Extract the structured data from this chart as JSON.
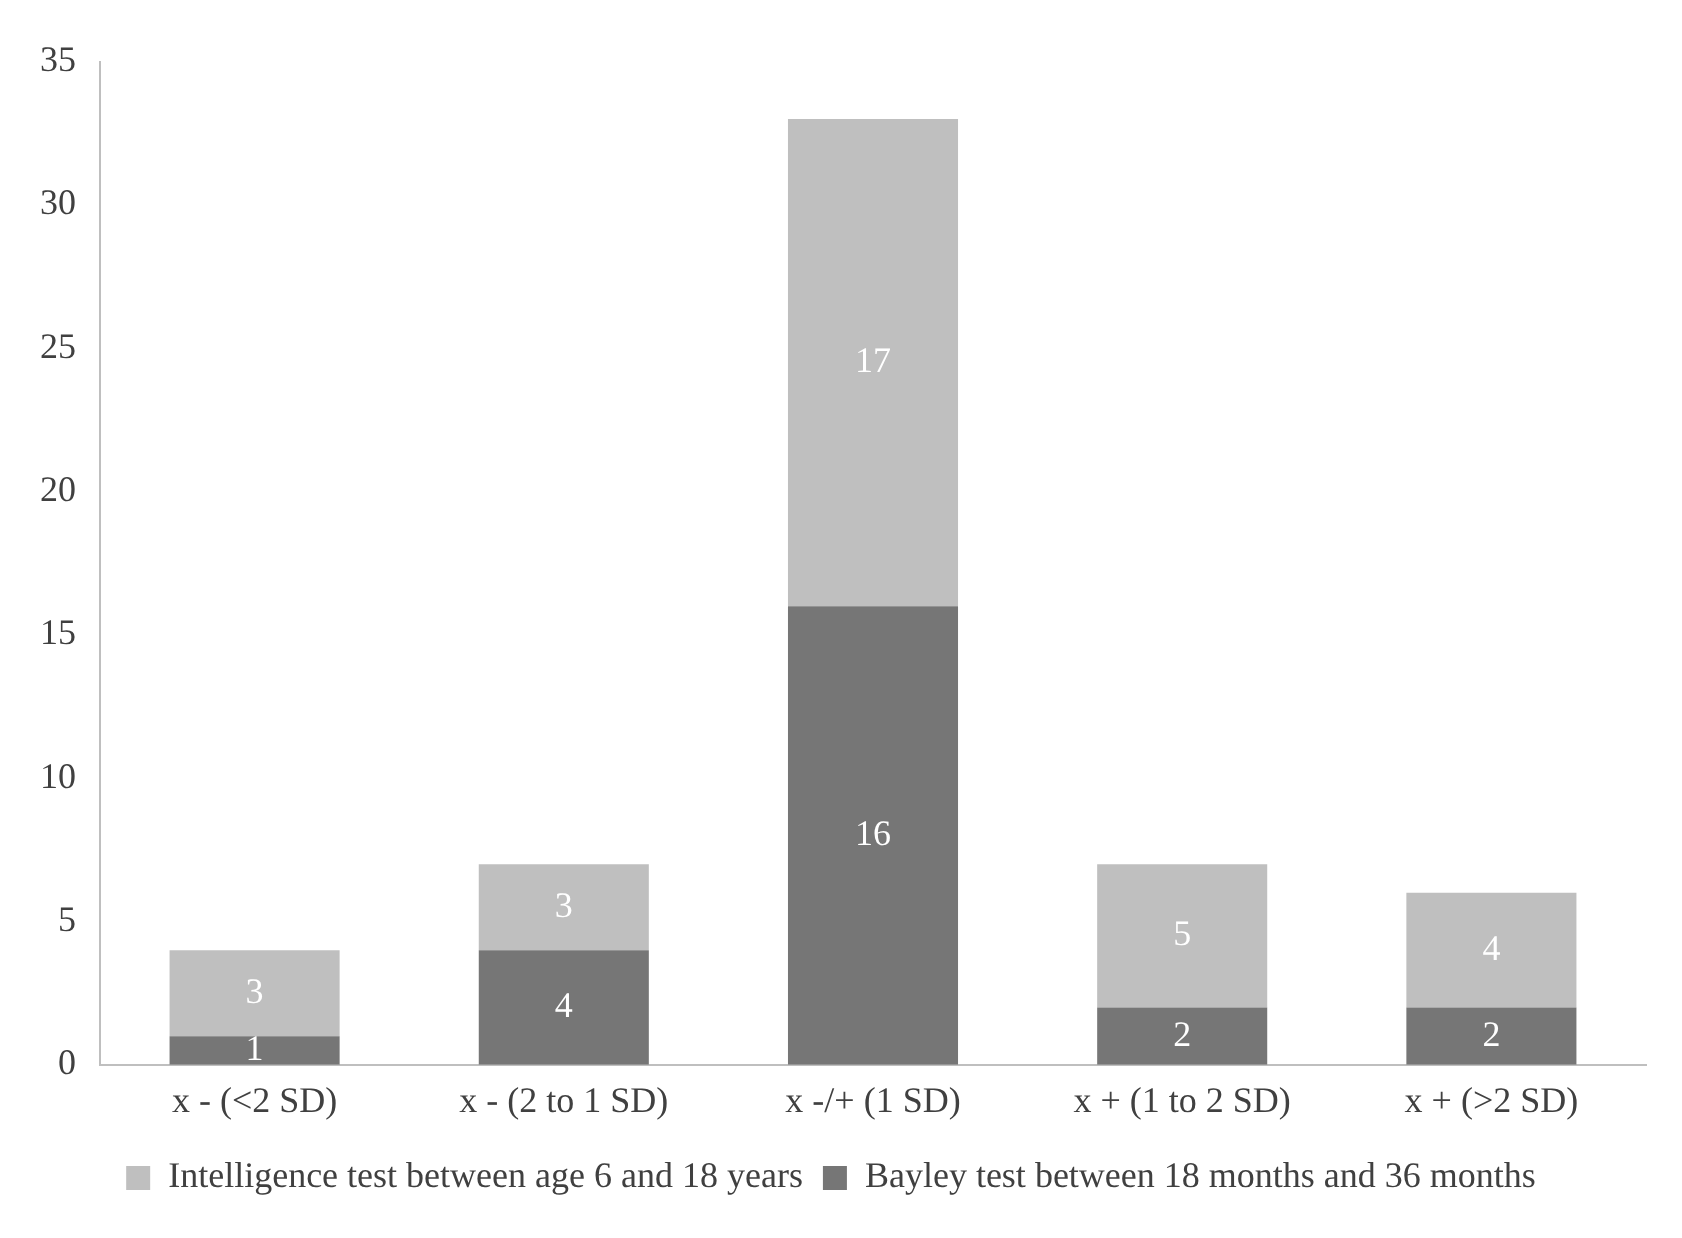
{
  "chart_data": {
    "type": "bar",
    "stacked": true,
    "categories": [
      "x - (<2 SD)",
      "x - (2 to 1 SD)",
      "x -/+ (1 SD)",
      "x + (1 to 2 SD)",
      "x + (>2 SD)"
    ],
    "series": [
      {
        "name": "Bayley test between 18 months and 36 months",
        "color": "#767676",
        "values": [
          1,
          4,
          16,
          2,
          2
        ]
      },
      {
        "name": "Intelligence test between age 6 and 18 years",
        "color": "#bfbfbf",
        "values": [
          3,
          3,
          17,
          5,
          4
        ]
      }
    ],
    "ylim": [
      0,
      35
    ],
    "yticks": [
      0,
      5,
      10,
      15,
      20,
      25,
      30,
      35
    ],
    "grid": false,
    "legend": "bottom",
    "data_labels": true
  }
}
